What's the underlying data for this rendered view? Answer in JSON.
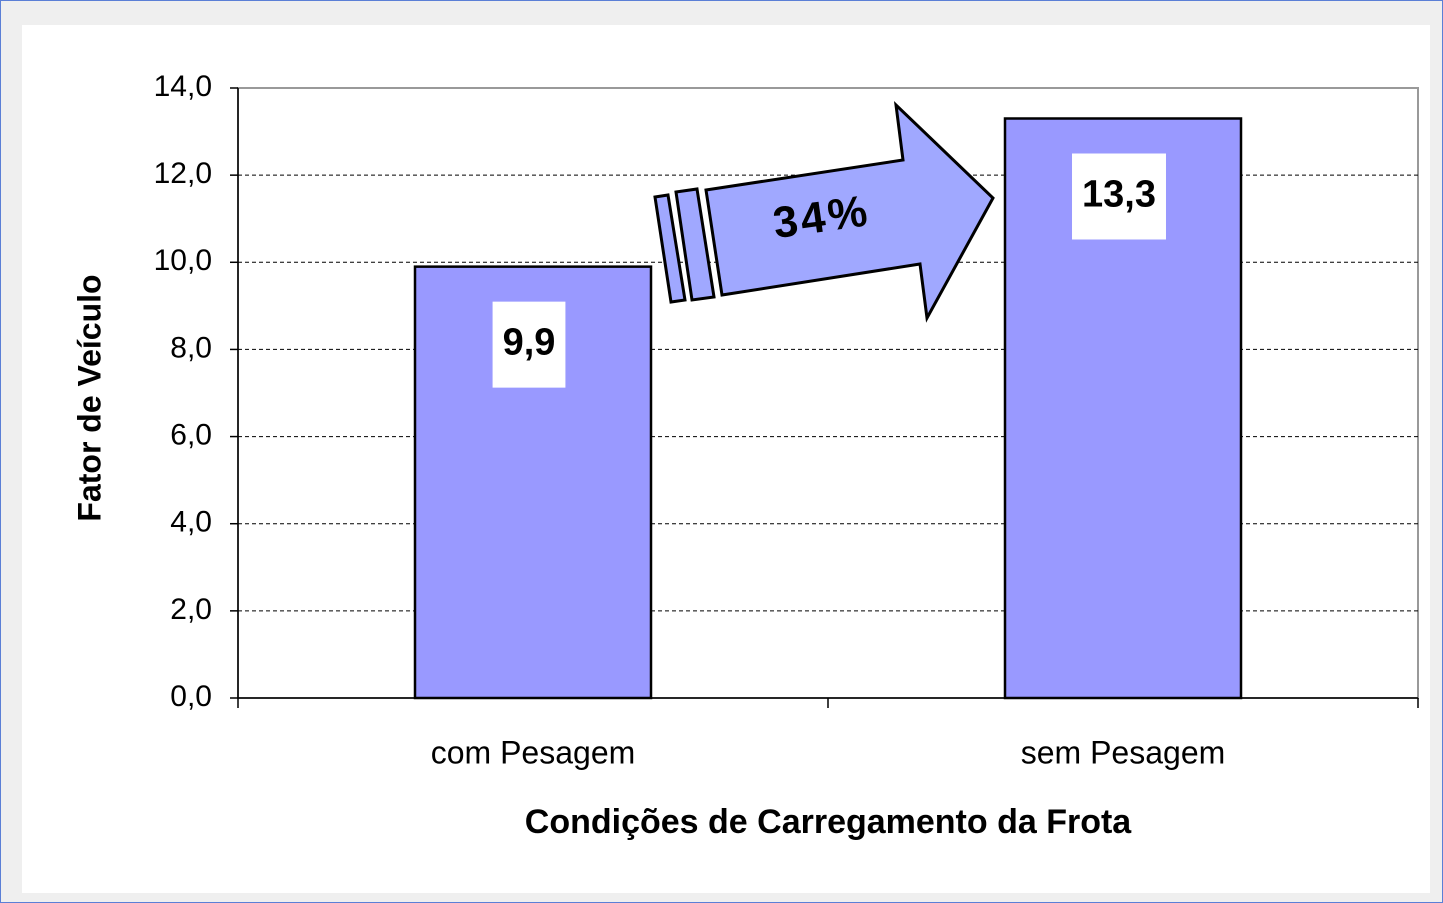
{
  "chart_data": {
    "type": "bar",
    "xlabel": "Condições de Carregamento da Frota",
    "ylabel": "Fator de Veículo",
    "categories": [
      "com Pesagem",
      "sem Pesagem"
    ],
    "values": [
      9.9,
      13.3
    ],
    "value_labels": [
      "9,9",
      "13,3"
    ],
    "color": "#9999ff",
    "ylim": [
      0,
      14
    ],
    "yticks": [
      {
        "value": 0,
        "label": "0,0"
      },
      {
        "value": 2,
        "label": "2,0"
      },
      {
        "value": 4,
        "label": "4,0"
      },
      {
        "value": 6,
        "label": "6,0"
      },
      {
        "value": 8,
        "label": "8,0"
      },
      {
        "value": 10,
        "label": "10,0"
      },
      {
        "value": 12,
        "label": "12,0"
      },
      {
        "value": 14,
        "label": "14,0"
      }
    ],
    "grid": true,
    "annotation": "34%"
  }
}
